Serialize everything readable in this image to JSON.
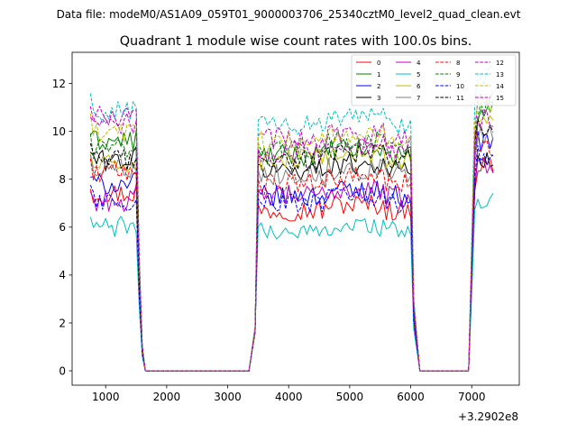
{
  "chart_data": {
    "type": "line",
    "suptitle": "Data file: modeM0/AS1A09_059T01_9000003706_25340cztM0_level2_quad_clean.evt",
    "title": "Quadrant 1 module wise count rates with 100.0s bins.",
    "xlabel": "",
    "ylabel": "",
    "x_offset_label": "+3.2902e8",
    "xlim": [
      450,
      7780
    ],
    "ylim": [
      -0.6,
      13.3
    ],
    "xticks": [
      1000,
      2000,
      3000,
      4000,
      5000,
      6000,
      7000
    ],
    "xtick_labels": [
      "1000",
      "2000",
      "3000",
      "4000",
      "5000",
      "6000",
      "7000"
    ],
    "yticks": [
      0,
      2,
      4,
      6,
      8,
      10,
      12
    ],
    "ytick_labels": [
      "0",
      "2",
      "4",
      "6",
      "8",
      "10",
      "12"
    ],
    "legend_position": "top-right",
    "segments": [
      {
        "x_start": 750,
        "step": 50,
        "count": 18
      },
      {
        "x_start": 1650,
        "step": 100,
        "count": 18
      },
      {
        "x_start": 3450,
        "step": 50,
        "count": 52
      },
      {
        "x_start": 6050,
        "step": 100,
        "count": 9
      },
      {
        "x_start": 6950,
        "step": 50,
        "count": 9
      }
    ],
    "series": [
      {
        "name": "0",
        "color": "#ff0000",
        "dash": "solid",
        "base": 7.4,
        "mid": 6.7,
        "end": 8.6
      },
      {
        "name": "1",
        "color": "#008000",
        "dash": "solid",
        "base": 9.6,
        "mid": 9.0,
        "end": 10.8
      },
      {
        "name": "2",
        "color": "#0000ff",
        "dash": "solid",
        "base": 7.8,
        "mid": 7.3,
        "end": 9.6
      },
      {
        "name": "3",
        "color": "#000000",
        "dash": "solid",
        "base": 8.8,
        "mid": 8.4,
        "end": 8.7
      },
      {
        "name": "4",
        "color": "#bf00bf",
        "dash": "solid",
        "base": 7.1,
        "mid": 7.3,
        "end": 8.6
      },
      {
        "name": "5",
        "color": "#00bfbf",
        "dash": "solid",
        "base": 6.0,
        "mid": 5.8,
        "end": 7.1
      },
      {
        "name": "6",
        "color": "#bfbf00",
        "dash": "solid",
        "base": 8.6,
        "mid": 8.8,
        "end": 10.4
      },
      {
        "name": "7",
        "color": "#808080",
        "dash": "solid",
        "base": 8.5,
        "mid": 8.2,
        "end": 9.8
      },
      {
        "name": "8",
        "color": "#ff0000",
        "dash": "dashed",
        "base": 8.3,
        "mid": 7.8,
        "end": 9.4
      },
      {
        "name": "9",
        "color": "#008000",
        "dash": "dashed",
        "base": 9.3,
        "mid": 9.3,
        "end": 11.0
      },
      {
        "name": "10",
        "color": "#0000ff",
        "dash": "dashed",
        "base": 7.1,
        "mid": 7.0,
        "end": 9.0
      },
      {
        "name": "11",
        "color": "#000000",
        "dash": "dashed",
        "base": 8.8,
        "mid": 8.8,
        "end": 10.2
      },
      {
        "name": "12",
        "color": "#bf00bf",
        "dash": "dashed",
        "base": 10.3,
        "mid": 9.7,
        "end": 11.2
      },
      {
        "name": "13",
        "color": "#00bfbf",
        "dash": "dashed",
        "base": 10.8,
        "mid": 10.3,
        "end": 12.4
      },
      {
        "name": "14",
        "color": "#bfbf00",
        "dash": "dashed",
        "base": 9.9,
        "mid": 9.6,
        "end": 11.2
      },
      {
        "name": "15",
        "color": "#bf00bf",
        "dash": "dashed",
        "base": 10.6,
        "mid": 9.1,
        "end": 10.5
      }
    ]
  }
}
